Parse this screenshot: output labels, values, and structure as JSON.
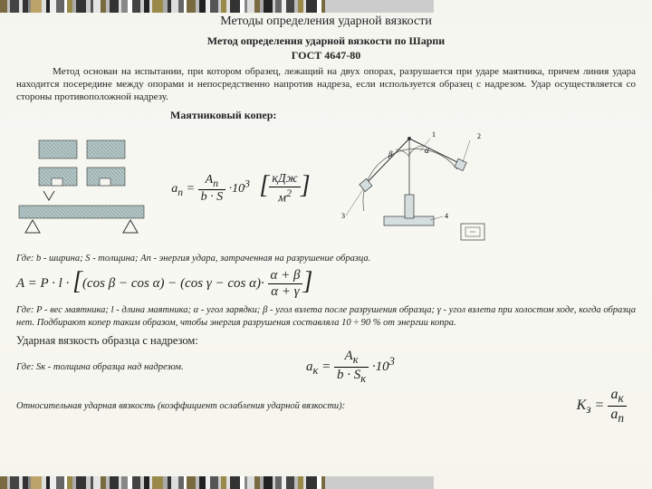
{
  "title": "Методы определения ударной вязкости",
  "subtitle_line1": "Метод определения ударной вязкости по Шарпи",
  "subtitle_line2": "ГОСТ 4647-80",
  "intro": "Метод основан на испытании, при котором образец, лежащий на двух опорах, разрушается при ударе маятника, причем линия удара  находится посередине между опорами и непосредственно напротив надреза, если используется образец с надрезом. Удар осуществляется со стороны противоположной надрезу.",
  "pendulum_label": "Маятниковый копер:",
  "caption1": "Где: b - ширина; S - толщина; An - энергия удара, затраченная на разрушение образца.",
  "caption2": "Где: P - вес маятника; l - длина маятника; α - угол зарядки; β - угол взлета после разрушения образца; γ - угол взлета при холостом ходе, когда образца нет. Подбирают копер таким образом, чтобы энергия разрушения составляла 10 ÷ 90 % от энергии копра.",
  "section_h": "Ударная вязкость образца с надрезом:",
  "caption3": "Где: Sк - толщина образца над надрезом.",
  "final_line": "Относительная ударная вязкость (коэффициент ослабления ударной вязкости):",
  "formula1": {
    "lhs": "a",
    "sub": "n",
    "eq": "= ",
    "num": "A",
    "numsub": "n",
    "den1": "b · S",
    "mult": "·10",
    "pow": "3",
    "u_num": "кДж",
    "u_den": "м",
    "u_pow": "2"
  },
  "formula2": {
    "text": "A = P · l · [(cos β − cos α) − (cos γ − cos α) · ",
    "fr_num": "α + β",
    "fr_den": "α + γ",
    "close": "]"
  },
  "formula3": {
    "lhs": "a",
    "sub": "к",
    "eq": "= ",
    "num": "A",
    "numsub": "к",
    "den": "b · S",
    "densub": "к",
    "mult": "·10",
    "pow": "3"
  },
  "formula4": {
    "lhs": "K",
    "sub": "з",
    "eq": "= ",
    "num": "a",
    "numsub": "к",
    "den": "a",
    "densub": "n"
  },
  "barcode": {
    "colors": [
      "#7a6a3f",
      "#c0c0c0",
      "#444",
      "#e0e0e0",
      "#333",
      "#888",
      "#bba36a",
      "#ddd",
      "#222",
      "#eee",
      "#666",
      "#fff",
      "#9a8a4a",
      "#aaa",
      "#333",
      "#ccc",
      "#555",
      "#e5e5e5",
      "#7a6a3f",
      "#bbb",
      "#333",
      "#ddd",
      "#888",
      "#fff",
      "#444",
      "#ccc",
      "#222",
      "#e0e0e0",
      "#9a8a4a",
      "#aaa",
      "#333",
      "#ddd",
      "#666",
      "#fff",
      "#7a6a3f",
      "#bbb",
      "#222",
      "#eee",
      "#555",
      "#ccc",
      "#9a8a4a",
      "#e0e0e0",
      "#333",
      "#fff",
      "#888",
      "#ddd",
      "#7a6a3f",
      "#aaa",
      "#222",
      "#ccc",
      "#666",
      "#eee",
      "#444",
      "#bbb",
      "#9a8a4a",
      "#ddd",
      "#333",
      "#fff",
      "#7a6a3f",
      "#ccc"
    ],
    "widths": [
      8,
      3,
      10,
      4,
      6,
      3,
      12,
      5,
      4,
      7,
      9,
      3,
      6,
      4,
      11,
      5,
      3,
      8,
      6,
      4,
      10,
      3,
      7,
      5,
      9,
      4,
      6,
      3,
      12,
      5,
      4,
      8,
      6,
      3,
      10,
      4,
      7,
      5,
      9,
      3,
      6,
      4,
      11,
      5,
      3,
      8,
      6,
      4,
      10,
      3,
      7,
      5,
      9,
      4,
      6,
      3,
      12,
      5,
      4,
      120
    ]
  },
  "diagram": {
    "block_fill": "#b4c7c7",
    "hatch": "#8a9a9a",
    "outline": "#333",
    "arc_color": "#555",
    "labels": [
      "1",
      "2",
      "3",
      "4"
    ],
    "angles": [
      "α",
      "β"
    ]
  }
}
